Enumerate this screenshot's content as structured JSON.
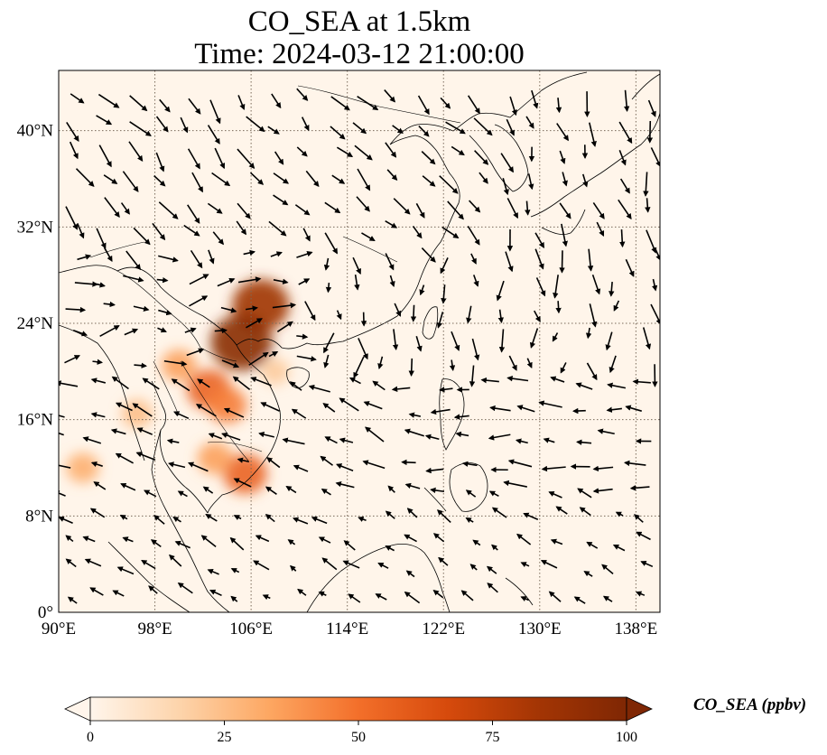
{
  "title": {
    "line1": "CO_SEA at 1.5km",
    "line2": "Time: 2024-03-12 21:00:00"
  },
  "map": {
    "extent": {
      "lon_min": 90,
      "lon_max": 140,
      "lat_min": 0,
      "lat_max": 45
    },
    "lon_ticks": [
      {
        "value": 90,
        "label": "90°E"
      },
      {
        "value": 98,
        "label": "98°E"
      },
      {
        "value": 106,
        "label": "106°E"
      },
      {
        "value": 114,
        "label": "114°E"
      },
      {
        "value": 122,
        "label": "122°E"
      },
      {
        "value": 130,
        "label": "130°E"
      },
      {
        "value": 138,
        "label": "138°E"
      }
    ],
    "lat_ticks": [
      {
        "value": 0,
        "label": "0°"
      },
      {
        "value": 8,
        "label": "8°N"
      },
      {
        "value": 16,
        "label": "16°N"
      },
      {
        "value": 24,
        "label": "24°N"
      },
      {
        "value": 32,
        "label": "32°N"
      },
      {
        "value": 40,
        "label": "40°N"
      }
    ],
    "gridlines": true,
    "field_background_color": "#fff5ea",
    "concentration_hotspots": [
      {
        "lon": 106.8,
        "lat": 25.5,
        "value": 85
      },
      {
        "lon": 105.2,
        "lat": 22.4,
        "value": 95
      },
      {
        "lon": 102.5,
        "lat": 18.5,
        "value": 55
      },
      {
        "lon": 104.0,
        "lat": 17.2,
        "value": 45
      },
      {
        "lon": 105.5,
        "lat": 11.5,
        "value": 55
      },
      {
        "lon": 103.0,
        "lat": 12.8,
        "value": 35
      },
      {
        "lon": 92.0,
        "lat": 12.0,
        "value": 30
      },
      {
        "lon": 96.5,
        "lat": 16.5,
        "value": 25
      },
      {
        "lon": 100.0,
        "lat": 20.5,
        "value": 35
      },
      {
        "lon": 108.0,
        "lat": 20.0,
        "value": 20
      }
    ],
    "wind_arrows_note": "",
    "coast_color": "#000000"
  },
  "colorbar": {
    "min": 0,
    "max": 100,
    "ticks": [
      {
        "value": 0,
        "label": "0"
      },
      {
        "value": 25,
        "label": "25"
      },
      {
        "value": 50,
        "label": "50"
      },
      {
        "value": 75,
        "label": "75"
      },
      {
        "value": 100,
        "label": "100"
      }
    ],
    "label": "CO_SEA (ppbv)",
    "colors": [
      "#fff5eb",
      "#fdd4ab",
      "#fda762",
      "#f36f2a",
      "#d64a0c",
      "#a43504",
      "#7f2704"
    ]
  }
}
